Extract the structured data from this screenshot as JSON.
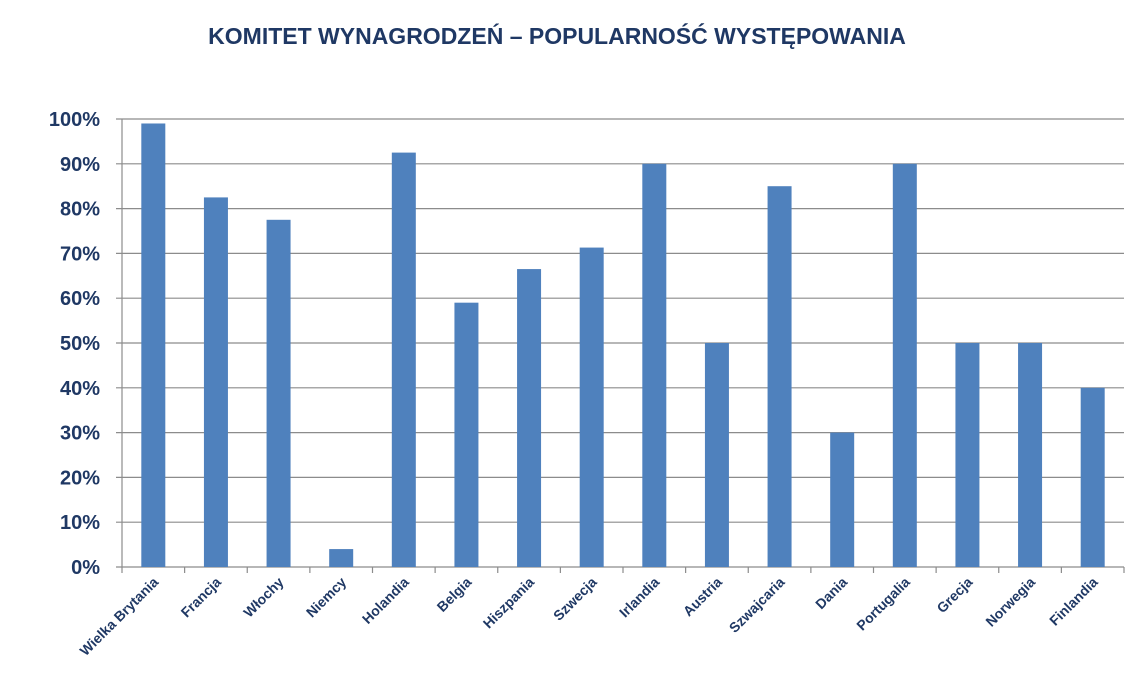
{
  "chart_data": {
    "type": "bar",
    "title": "KOMITET WYNAGRODZEŃ – POPULARNOŚĆ WYSTĘPOWANIA",
    "xlabel": "",
    "ylabel": "",
    "categories": [
      "Wielka Brytania",
      "Francja",
      "Włochy",
      "Niemcy",
      "Holandia",
      "Belgia",
      "Hiszpania",
      "Szwecja",
      "Irlandia",
      "Austria",
      "Szwajcaria",
      "Dania",
      "Portugalia",
      "Grecja",
      "Norwegia",
      "Finlandia"
    ],
    "values": [
      99,
      82.5,
      77.5,
      4,
      92.5,
      59,
      66.5,
      71.3,
      90,
      50,
      85,
      30,
      90,
      50,
      50,
      40
    ],
    "ylim": [
      0,
      100
    ],
    "yticks": [
      "0%",
      "10%",
      "20%",
      "30%",
      "40%",
      "50%",
      "60%",
      "70%",
      "80%",
      "90%",
      "100%"
    ],
    "grid": true,
    "legend": "none",
    "bar_color": "#4f81bd",
    "grid_color": "#8c8c8c",
    "text_color": "#1f3864"
  }
}
